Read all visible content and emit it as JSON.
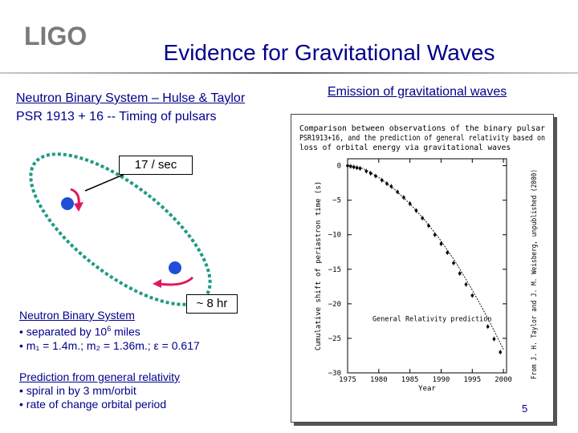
{
  "logo_text": "LIGO",
  "title": "Evidence for Gravitational Waves",
  "left": {
    "heading_line1": "Neutron Binary System – Hulse & Taylor",
    "heading_line2": "PSR 1913 + 16  -- Timing of pulsars",
    "callout_period": "17 / sec",
    "callout_orbit": "~ 8 hr",
    "neutron_binary": {
      "heading": "Neutron Binary System",
      "separated_pre": "• separated by 10",
      "separated_exp": "6",
      "separated_post": " miles",
      "mass_line": "• m₁ = 1.4m.; m₂ = 1.36m.; ε = 0.617"
    },
    "prediction": {
      "heading": "Prediction from general relativity",
      "item1": "• spiral in by 3 mm/orbit",
      "item2": "• rate of change orbital period"
    }
  },
  "right": {
    "heading": "Emission of gravitational waves",
    "caption_line1": "Comparison  between  observations  of  the  binary  pulsar",
    "caption_line2": "PSR1913+16,  and  the  prediction  of  general relativity  based  on",
    "caption_line3": "loss of orbital energy via gravitational waves",
    "credit": "From J. H. Taylor and J. M. Weisberg, unpublished (2000)",
    "curve_label": "General Relativity prediction",
    "page_number": "5"
  },
  "colors": {
    "text_blue": "#00008b",
    "orbit_teal": "#1f9b84",
    "star_blue": "#1f4ed8",
    "arrow_red": "#e0185f"
  },
  "chart_data": {
    "type": "scatter",
    "title": "",
    "xlabel": "Year",
    "ylabel": "Cumulative shift of periastron time (s)",
    "xlim": [
      1975,
      2000.5
    ],
    "ylim": [
      -30,
      1
    ],
    "xticks": [
      1975,
      1980,
      1985,
      1990,
      1995,
      2000
    ],
    "yticks": [
      0,
      -5,
      -10,
      -15,
      -20,
      -25,
      -30
    ],
    "series": [
      {
        "values_x": [
          1975.0,
          1975.5,
          1976.0,
          1976.5,
          1977.0,
          1978.0,
          1978.7,
          1979.5,
          1980.5,
          1981.3,
          1982.0,
          1983.0,
          1984.0,
          1985.0,
          1986.0,
          1987.0,
          1988.0,
          1989.0,
          1990.0,
          1991.0,
          1992.0,
          1993.0,
          1994.0,
          1995.0,
          1997.5,
          1998.5,
          1999.5
        ],
        "values_y": [
          0.0,
          -0.1,
          -0.2,
          -0.3,
          -0.4,
          -0.8,
          -1.1,
          -1.5,
          -2.1,
          -2.6,
          -3.0,
          -3.8,
          -4.6,
          -5.5,
          -6.5,
          -7.6,
          -8.7,
          -10.0,
          -11.3,
          -12.6,
          -14.1,
          -15.6,
          -17.2,
          -18.8,
          -23.3,
          -25.1,
          -27.0
        ]
      }
    ],
    "curve": {
      "name": "General Relativity prediction",
      "x": [
        1975,
        1977.5,
        1980,
        1982.5,
        1985,
        1987.5,
        1990,
        1992.5,
        1995,
        1997.5,
        2000
      ],
      "y": [
        0,
        -0.4,
        -1.7,
        -3.4,
        -5.5,
        -8.0,
        -10.9,
        -14.2,
        -18.0,
        -22.1,
        -26.6
      ]
    }
  }
}
